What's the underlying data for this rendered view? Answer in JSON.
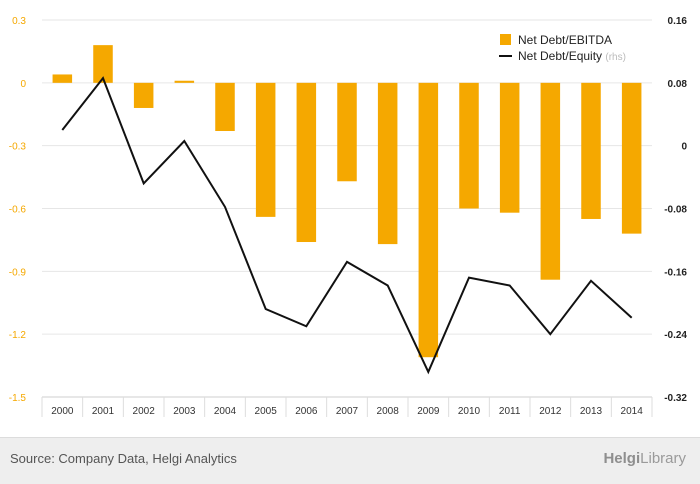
{
  "chart_data": {
    "type": "bar",
    "categories": [
      "2000",
      "2001",
      "2002",
      "2003",
      "2004",
      "2005",
      "2006",
      "2007",
      "2008",
      "2009",
      "2010",
      "2011",
      "2012",
      "2013",
      "2014"
    ],
    "series": [
      {
        "name": "Net Debt/EBITDA",
        "type": "bar",
        "axis": "left",
        "color": "#f5a800",
        "values": [
          0.04,
          0.18,
          -0.12,
          0.01,
          -0.23,
          -0.64,
          -0.76,
          -0.47,
          -0.77,
          -1.31,
          -0.6,
          -0.62,
          -0.94,
          -0.65,
          -0.72
        ]
      },
      {
        "name": "Net Debt/Equity",
        "name_suffix": "(rhs)",
        "type": "line",
        "axis": "right",
        "color": "#111111",
        "values": [
          0.02,
          0.086,
          -0.048,
          0.006,
          -0.078,
          -0.208,
          -0.23,
          -0.148,
          -0.178,
          -0.288,
          -0.168,
          -0.178,
          -0.24,
          -0.172,
          -0.219
        ]
      }
    ],
    "left_axis": {
      "ticks": [
        "0.3",
        "0",
        "-0.3",
        "-0.6",
        "-0.9",
        "-1.2",
        "-1.5"
      ],
      "ylim": [
        -1.5,
        0.3
      ],
      "tick_color": "#f5a800"
    },
    "right_axis": {
      "ticks": [
        "0.16",
        "0.08",
        "0",
        "-0.08",
        "-0.16",
        "-0.24",
        "-0.32"
      ],
      "ylim": [
        -0.32,
        0.16
      ],
      "tick_color": "#222222"
    },
    "grid": true,
    "legend_position": "top-right"
  },
  "footer": {
    "source": "Source: Company Data, Helgi Analytics",
    "brand_name": "Helgi",
    "brand_suffix": "Library"
  }
}
